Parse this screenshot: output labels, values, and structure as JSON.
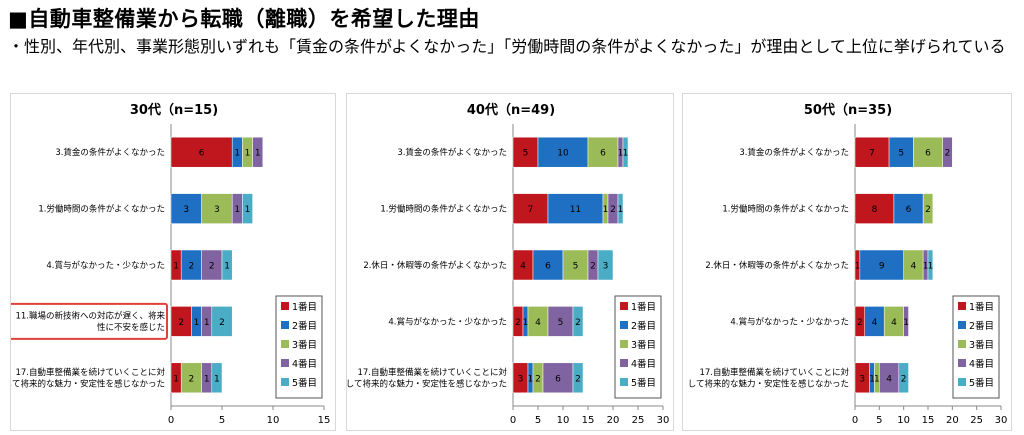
{
  "header": {
    "title": "■自動車整備業から転職（離職）を希望した理由",
    "subtitle": "・性別、年代別、事業形態別いずれも「賃金の条件がよくなかった」「労働時間の条件がよくなかった」が理由として上位に挙げられている"
  },
  "colors": {
    "rank1": "#C0171F",
    "rank2": "#1F6FC2",
    "rank3": "#9BBB59",
    "rank4": "#8064A2",
    "rank5": "#4BACC6"
  },
  "chart_data": [
    {
      "type": "bar",
      "orientation": "horizontal",
      "stacked": true,
      "title": "30代（n=15)",
      "categories": [
        "3.賃金の条件がよくなかった",
        "1.労働時間の条件がよくなかった",
        "4.賞与がなかった・少なかった",
        "11.職場の新技術への対応が遅く、将来性に不安を感じた",
        "17.自動車整備業を続けていくことに対して将来的な魅力・安定性を感じなかった"
      ],
      "highlight_category": 3,
      "series": [
        {
          "name": "1番目",
          "values": [
            6,
            0,
            1,
            2,
            1
          ]
        },
        {
          "name": "2番目",
          "values": [
            1,
            3,
            2,
            1,
            0
          ]
        },
        {
          "name": "3番目",
          "values": [
            1,
            3,
            0,
            0,
            2
          ]
        },
        {
          "name": "4番目",
          "values": [
            1,
            1,
            2,
            1,
            1
          ]
        },
        {
          "name": "5番目",
          "values": [
            0,
            1,
            1,
            2,
            1
          ]
        }
      ],
      "xlim": [
        0,
        15
      ],
      "xticks": [
        0,
        5,
        10,
        15
      ],
      "legend_position": "bottom-right"
    },
    {
      "type": "bar",
      "orientation": "horizontal",
      "stacked": true,
      "title": "40代（n=49)",
      "categories": [
        "3.賃金の条件がよくなかった",
        "1.労働時間の条件がよくなかった",
        "2.休日・休暇等の条件がよくなかった",
        "4.賞与がなかった・少なかった",
        "17.自動車整備業を続けていくことに対して将来的な魅力・安定性を感じなかった"
      ],
      "series": [
        {
          "name": "1番目",
          "values": [
            5,
            7,
            4,
            2,
            3
          ]
        },
        {
          "name": "2番目",
          "values": [
            10,
            11,
            6,
            1,
            1
          ]
        },
        {
          "name": "3番目",
          "values": [
            6,
            1,
            5,
            4,
            2
          ]
        },
        {
          "name": "4番目",
          "values": [
            1,
            2,
            2,
            5,
            6
          ]
        },
        {
          "name": "5番目",
          "values": [
            1,
            1,
            3,
            2,
            2
          ]
        }
      ],
      "xlim": [
        0,
        30
      ],
      "xticks": [
        0,
        5,
        10,
        15,
        20,
        25,
        30
      ],
      "legend_position": "bottom-right"
    },
    {
      "type": "bar",
      "orientation": "horizontal",
      "stacked": true,
      "title": "50代（n=35)",
      "categories": [
        "3.賃金の条件がよくなかった",
        "1.労働時間の条件がよくなかった",
        "2.休日・休暇等の条件がよくなかった",
        "4.賞与がなかった・少なかった",
        "17.自動車整備業を続けていくことに対して将来的な魅力・安定性を感じなかった"
      ],
      "series": [
        {
          "name": "1番目",
          "values": [
            7,
            8,
            1,
            2,
            3
          ]
        },
        {
          "name": "2番目",
          "values": [
            5,
            6,
            9,
            4,
            1
          ]
        },
        {
          "name": "3番目",
          "values": [
            6,
            2,
            4,
            4,
            1
          ]
        },
        {
          "name": "4番目",
          "values": [
            2,
            0,
            1,
            1,
            4
          ]
        },
        {
          "name": "5番目",
          "values": [
            0,
            0,
            1,
            0,
            2
          ]
        }
      ],
      "xlim": [
        0,
        30
      ],
      "xticks": [
        0,
        5,
        10,
        15,
        20,
        25,
        30
      ],
      "legend_position": "bottom-right"
    }
  ]
}
